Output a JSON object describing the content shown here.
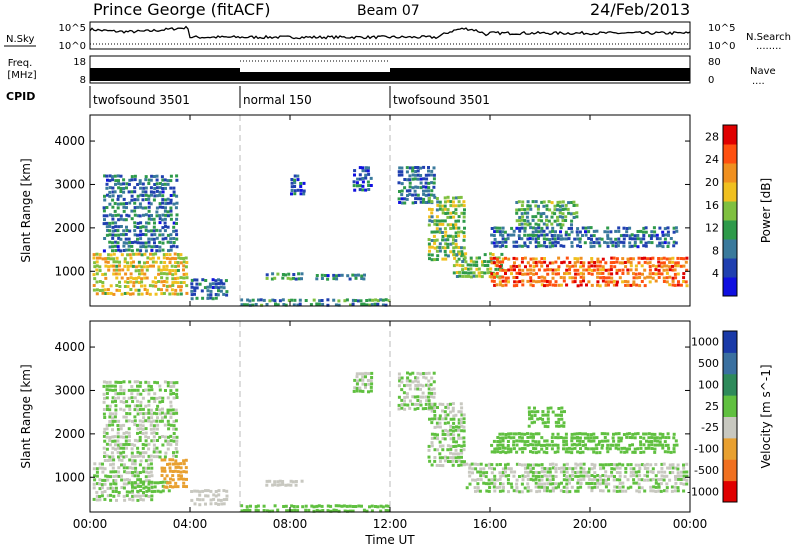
{
  "header": {
    "station": "Prince George (fitACF)",
    "beam": "Beam 07",
    "date": "24/Feb/2013"
  },
  "top_panels": {
    "nsky_label": "N.Sky",
    "nsearch_label": "N.Search",
    "nsearch_key": "........",
    "noise_ticks_left": [
      "10^5",
      "10^0"
    ],
    "noise_ticks_right": [
      "10^5",
      "10^0"
    ],
    "freq_label": "Freq.",
    "freq_unit": "[MHz]",
    "freq_ticks": [
      "18",
      "8"
    ],
    "nave_label": "Nave",
    "nave_key": "....",
    "nave_ticks": [
      "80",
      "0"
    ],
    "cpid_label": "CPID",
    "cpid_segments": [
      {
        "start_h": 0,
        "end_h": 6,
        "label": "twofsound 3501"
      },
      {
        "start_h": 6,
        "end_h": 12,
        "label": "normal 150"
      },
      {
        "start_h": 12,
        "end_h": 24,
        "label": "twofsound 3501"
      }
    ]
  },
  "chart_data": [
    {
      "type": "heatmap",
      "title": "",
      "xlabel": "",
      "ylabel": "Slant Range [km]",
      "xlim": [
        0,
        24
      ],
      "ylim": [
        200,
        4600
      ],
      "yticks": [
        "1000",
        "2000",
        "3000",
        "4000"
      ],
      "colorbar": {
        "label": "Power [dB]",
        "ticks": [
          "4",
          "8",
          "12",
          "16",
          "20",
          "24",
          "28"
        ],
        "range": [
          0,
          30
        ],
        "colors": [
          "#1010e0",
          "#2040b0",
          "#3a7a9c",
          "#2e9a4a",
          "#7fc040",
          "#f0c020",
          "#f09020",
          "#ff5010",
          "#e00000"
        ]
      },
      "vertical_markers_h": [
        6,
        12
      ],
      "echo_regions": [
        {
          "t0": 0.1,
          "t1": 3.9,
          "r0": 500,
          "r1": 1500,
          "value": 18
        },
        {
          "t0": 0.5,
          "t1": 3.5,
          "r0": 1500,
          "r1": 3300,
          "value": 8
        },
        {
          "t0": 4.0,
          "t1": 5.5,
          "r0": 400,
          "r1": 900,
          "value": 8
        },
        {
          "t0": 7.0,
          "t1": 8.5,
          "r0": 850,
          "r1": 1050,
          "value": 10
        },
        {
          "t0": 9.0,
          "t1": 11.0,
          "r0": 850,
          "r1": 1000,
          "value": 8
        },
        {
          "t0": 8.0,
          "t1": 8.6,
          "r0": 2800,
          "r1": 3300,
          "value": 6
        },
        {
          "t0": 10.5,
          "t1": 11.3,
          "r0": 2900,
          "r1": 3500,
          "value": 6
        },
        {
          "t0": 6.0,
          "t1": 12.0,
          "r0": 250,
          "r1": 450,
          "value": 10
        },
        {
          "t0": 12.3,
          "t1": 13.8,
          "r0": 2600,
          "r1": 3500,
          "value": 8
        },
        {
          "t0": 13.5,
          "t1": 15.0,
          "r0": 1300,
          "r1": 2800,
          "value": 14
        },
        {
          "t0": 14.5,
          "t1": 16.5,
          "r0": 900,
          "r1": 1500,
          "value": 14
        },
        {
          "t0": 16.0,
          "t1": 23.9,
          "r0": 700,
          "r1": 1400,
          "value": 24
        },
        {
          "t0": 16.0,
          "t1": 23.5,
          "r0": 1600,
          "r1": 2100,
          "value": 8
        },
        {
          "t0": 17.0,
          "t1": 19.5,
          "r0": 2100,
          "r1": 2700,
          "value": 12
        }
      ]
    },
    {
      "type": "heatmap",
      "title": "",
      "xlabel": "Time UT",
      "ylabel": "Slant Range [km]",
      "xlim": [
        0,
        24
      ],
      "ylim": [
        200,
        4600
      ],
      "xticks": [
        "00:00",
        "04:00",
        "08:00",
        "12:00",
        "16:00",
        "20:00",
        "00:00"
      ],
      "yticks": [
        "1000",
        "2000",
        "3000",
        "4000"
      ],
      "colorbar": {
        "label": "Velocity [m s^-1]",
        "ticks": [
          "1000",
          "500",
          "100",
          "25",
          "-25",
          "-100",
          "-500",
          "-1000"
        ],
        "range": [
          -1200,
          1200
        ],
        "colors": [
          "#1a3aa8",
          "#3a70a0",
          "#2e8a5a",
          "#60c040",
          "#c8c8c0",
          "#e8a030",
          "#f07020",
          "#e00000"
        ]
      },
      "vertical_markers_h": [
        6,
        12
      ],
      "echo_regions": [
        {
          "t0": 0.1,
          "t1": 2.5,
          "r0": 500,
          "r1": 1500,
          "value": 0
        },
        {
          "t0": 1.5,
          "t1": 3.2,
          "r0": 700,
          "r1": 1000,
          "value": 60
        },
        {
          "t0": 2.8,
          "t1": 3.9,
          "r0": 800,
          "r1": 1500,
          "value": -500
        },
        {
          "t0": 0.5,
          "t1": 3.5,
          "r0": 1500,
          "r1": 3300,
          "value": 0
        },
        {
          "t0": 4.0,
          "t1": 5.5,
          "r0": 400,
          "r1": 800,
          "value": -100
        },
        {
          "t0": 7.0,
          "t1": 8.5,
          "r0": 850,
          "r1": 1000,
          "value": -100
        },
        {
          "t0": 6.0,
          "t1": 12.0,
          "r0": 250,
          "r1": 450,
          "value": 60
        },
        {
          "t0": 10.5,
          "t1": 11.3,
          "r0": 3000,
          "r1": 3500,
          "value": 0
        },
        {
          "t0": 12.3,
          "t1": 13.8,
          "r0": 2600,
          "r1": 3500,
          "value": 0
        },
        {
          "t0": 13.5,
          "t1": 15.0,
          "r0": 1300,
          "r1": 2800,
          "value": 0
        },
        {
          "t0": 15.0,
          "t1": 23.9,
          "r0": 700,
          "r1": 1400,
          "value": 0
        },
        {
          "t0": 16.0,
          "t1": 23.5,
          "r0": 1600,
          "r1": 2100,
          "value": 60
        },
        {
          "t0": 17.5,
          "t1": 19.0,
          "r0": 2200,
          "r1": 2700,
          "value": 100
        }
      ]
    }
  ]
}
